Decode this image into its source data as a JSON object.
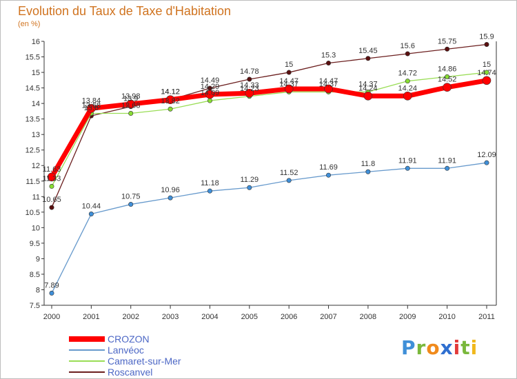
{
  "title": "Evolution du Taux de Taxe d'Habitation",
  "subtitle": "(en %)",
  "logo": {
    "letters": [
      {
        "ch": "P",
        "color": "#3f8fd8"
      },
      {
        "ch": "r",
        "color": "#7ab83c"
      },
      {
        "ch": "o",
        "color": "#f08a1c"
      },
      {
        "ch": "x",
        "color": "#2f6fd0"
      },
      {
        "ch": "i",
        "color": "#e23b3b"
      },
      {
        "ch": "t",
        "color": "#7ab83c"
      },
      {
        "ch": "i",
        "color": "#f0b81c"
      }
    ]
  },
  "chart_data": {
    "type": "line",
    "title": "Evolution du Taux de Taxe d'Habitation",
    "subtitle": "(en %)",
    "xlabel": "",
    "ylabel": "",
    "ylim": [
      7.5,
      16
    ],
    "ytick_step": 0.5,
    "grid": false,
    "legend_position": "bottom-left",
    "x": [
      "2000",
      "2001",
      "2002",
      "2003",
      "2004",
      "2005",
      "2006",
      "2007",
      "2008",
      "2009",
      "2010",
      "2011"
    ],
    "series": [
      {
        "name": "CROZON",
        "color": "#ff0000",
        "values": [
          11.63,
          13.84,
          13.98,
          14.12,
          14.29,
          14.33,
          14.47,
          14.47,
          14.24,
          14.24,
          14.52,
          14.74
        ],
        "labels": [
          "11.63",
          "13.84",
          "13.98",
          "14.12",
          "14.29",
          "14.33",
          "14.47",
          "14.47",
          "14.24",
          "14.24",
          "14.52",
          "14.74"
        ]
      },
      {
        "name": "Lanvéoc",
        "color": "#6699cc",
        "values": [
          7.89,
          10.44,
          10.75,
          10.96,
          11.18,
          11.29,
          11.52,
          11.69,
          11.8,
          11.91,
          11.91,
          12.09
        ],
        "labels": [
          "7.89",
          "10.44",
          "10.75",
          "10.96",
          "11.18",
          "11.29",
          "11.52",
          "11.69",
          "11.8",
          "11.91",
          "11.91",
          "12.09"
        ]
      },
      {
        "name": "Camaret-sur-Mer",
        "color": "#99dd55",
        "values": [
          11.33,
          13.68,
          13.68,
          13.82,
          14.09,
          14.23,
          14.37,
          14.37,
          14.37,
          14.72,
          14.86,
          15
        ],
        "labels": [
          "11.33",
          "13.68",
          "13.68",
          "13.82",
          "14.09",
          "14.23",
          "14.37",
          "14.37",
          "14.37",
          "14.72",
          "14.86",
          "15"
        ]
      },
      {
        "name": "Roscanvel",
        "color": "#6b1e1e",
        "values": [
          10.65,
          13.6,
          13.9,
          14.12,
          14.49,
          14.78,
          15,
          15.3,
          15.45,
          15.6,
          15.75,
          15.9
        ],
        "labels": [
          "10.65",
          "13.6",
          "13.9",
          "14.12",
          "14.49",
          "14.78",
          "15",
          "15.3",
          "15.45",
          "15.6",
          "15.75",
          "15.9"
        ]
      }
    ]
  }
}
